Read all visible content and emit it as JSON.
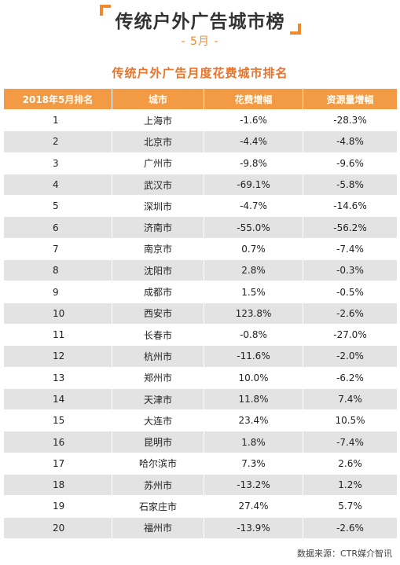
{
  "header": {
    "title": "传统户外广告城市榜",
    "month": "- 5月 -",
    "subtitle": "传统户外广告月度花费城市排名"
  },
  "colors": {
    "accent": "#f08a2c",
    "header_bg": "#f39a45",
    "stripe": "#e3e3e4"
  },
  "table": {
    "columns": [
      "2018年5月排名",
      "城市",
      "花费增幅",
      "资源量增幅"
    ],
    "rows": [
      [
        "1",
        "上海市",
        "-1.6%",
        "-28.3%"
      ],
      [
        "2",
        "北京市",
        "-4.4%",
        "-4.8%"
      ],
      [
        "3",
        "广州市",
        "-9.8%",
        "-9.6%"
      ],
      [
        "4",
        "武汉市",
        "-69.1%",
        "-5.8%"
      ],
      [
        "5",
        "深圳市",
        "-4.7%",
        "-14.6%"
      ],
      [
        "6",
        "济南市",
        "-55.0%",
        "-56.2%"
      ],
      [
        "7",
        "南京市",
        "0.7%",
        "-7.4%"
      ],
      [
        "8",
        "沈阳市",
        "2.8%",
        "-0.3%"
      ],
      [
        "9",
        "成都市",
        "1.5%",
        "-0.5%"
      ],
      [
        "10",
        "西安市",
        "123.8%",
        "-2.6%"
      ],
      [
        "11",
        "长春市",
        "-0.8%",
        "-27.0%"
      ],
      [
        "12",
        "杭州市",
        "-11.6%",
        "-2.0%"
      ],
      [
        "13",
        "郑州市",
        "10.0%",
        "-6.2%"
      ],
      [
        "14",
        "天津市",
        "11.8%",
        "7.4%"
      ],
      [
        "15",
        "大连市",
        "23.4%",
        "10.5%"
      ],
      [
        "16",
        "昆明市",
        "1.8%",
        "-7.4%"
      ],
      [
        "17",
        "哈尔滨市",
        "7.3%",
        "2.6%"
      ],
      [
        "18",
        "苏州市",
        "-13.2%",
        "1.2%"
      ],
      [
        "19",
        "石家庄市",
        "27.4%",
        "5.7%"
      ],
      [
        "20",
        "福州市",
        "-13.9%",
        "-2.6%"
      ]
    ]
  },
  "footer": {
    "source": "数据来源：CTR媒介智讯"
  },
  "watermark": "CTR媒介智讯"
}
